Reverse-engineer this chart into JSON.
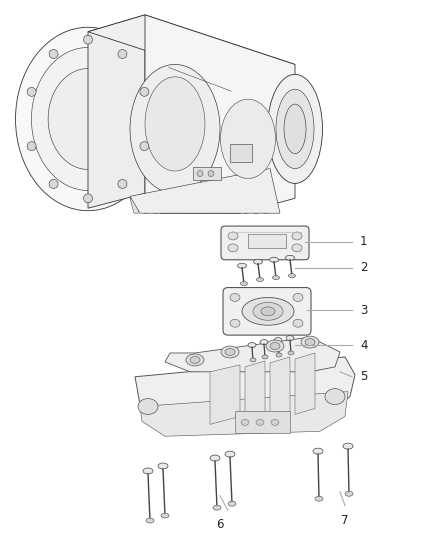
{
  "background_color": "#ffffff",
  "figure_width": 4.38,
  "figure_height": 5.33,
  "dpi": 100,
  "label_fontsize": 8.5,
  "line_color": "#aaaaaa",
  "label_color": "#222222",
  "edge_color": "#333333",
  "part_color": "#f5f5f5",
  "part_edge": "#555555",
  "bolt_color": "#e8e8e8",
  "bolt_edge": "#444444"
}
